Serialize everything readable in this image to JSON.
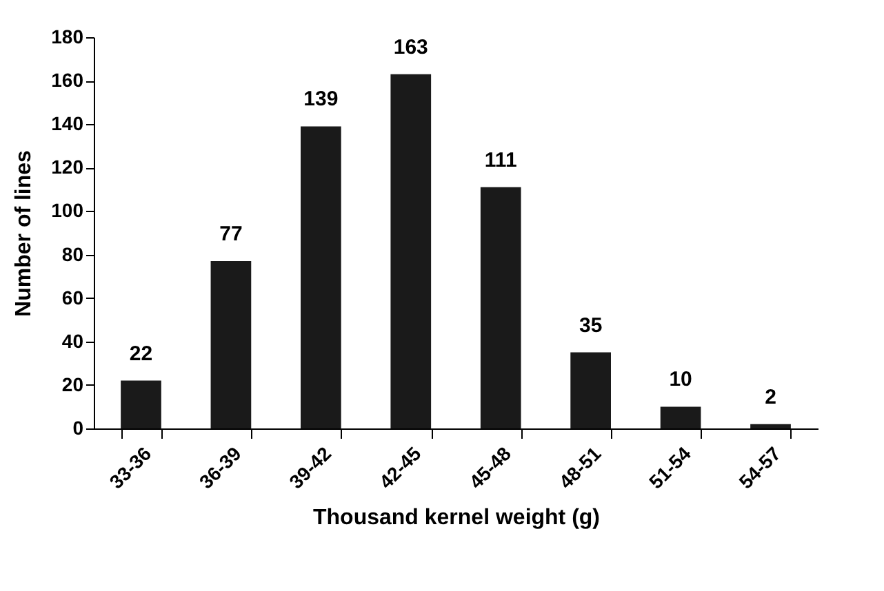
{
  "chart_data": {
    "type": "bar",
    "xlabel": "Thousand kernel weight (g)",
    "ylabel": "Number of lines",
    "categories": [
      "33-36",
      "36-39",
      "39-42",
      "42-45",
      "45-48",
      "48-51",
      "51-54",
      "54-57"
    ],
    "values": [
      22,
      77,
      139,
      163,
      111,
      35,
      10,
      2
    ],
    "color": "#1a1a1a",
    "ylim": [
      0,
      180
    ],
    "yticks": [
      0,
      20,
      40,
      60,
      80,
      100,
      120,
      140,
      160,
      180
    ],
    "grid": false,
    "data_labels": true
  }
}
